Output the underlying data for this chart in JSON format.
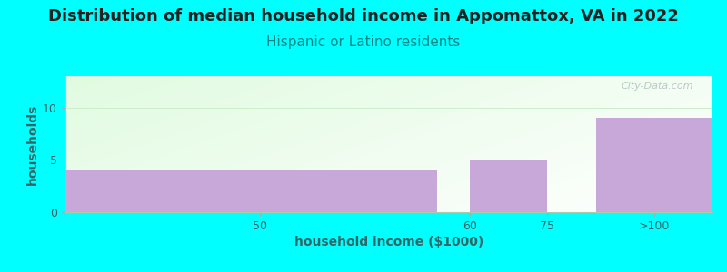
{
  "title": "Distribution of median household income in Appomattox, VA in 2022",
  "subtitle": "Hispanic or Latino residents",
  "xlabel": "household income ($1000)",
  "ylabel": "households",
  "background_color": "#00FFFF",
  "bar_color": "#c8a8d8",
  "values": [
    4,
    5,
    9
  ],
  "ylim": [
    0,
    13
  ],
  "yticks": [
    0,
    5,
    10
  ],
  "xtick_labels": [
    "50",
    "60",
    "75",
    ">100"
  ],
  "title_fontsize": 13,
  "subtitle_fontsize": 11,
  "subtitle_color": "#008888",
  "axis_label_fontsize": 10,
  "watermark": "City-Data.com"
}
